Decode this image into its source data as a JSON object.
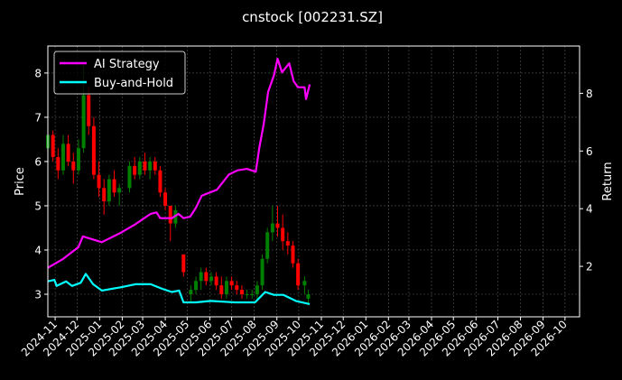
{
  "chart_data": {
    "type": "candlestick+line",
    "title": "cnstock [002231.SZ]",
    "ylabel_left": "Price",
    "ylabel_right": "Return",
    "ylim_left": [
      2.49,
      8.61
    ],
    "ylim_right": [
      0.25,
      9.64
    ],
    "xlim": [
      "2024-10-22",
      "2026-10-21"
    ],
    "left_ticks": [
      "3",
      "4",
      "5",
      "6",
      "7",
      "8"
    ],
    "right_ticks": [
      "2",
      "4",
      "6",
      "8"
    ],
    "x_ticks": [
      "2024-11",
      "2024-12",
      "2025-01",
      "2025-02",
      "2025-03",
      "2025-04",
      "2025-05",
      "2025-06",
      "2025-07",
      "2025-08",
      "2025-09",
      "2025-10",
      "2025-11",
      "2025-12",
      "2026-01",
      "2026-02",
      "2026-03",
      "2026-04",
      "2026-05",
      "2026-06",
      "2026-07",
      "2026-08",
      "2026-09",
      "2026-10"
    ],
    "grid": true,
    "legend_position": "top-left",
    "colors": {
      "up": "#008000",
      "down": "#ff0000",
      "ai": "#ff00ff",
      "bh": "#00ffff",
      "background": "#000000",
      "grid": "#555555"
    },
    "candles_columns": [
      "date",
      "open",
      "high",
      "low",
      "close"
    ],
    "candles": [
      [
        "2024-10-22",
        6.3,
        6.8,
        6.1,
        6.6
      ],
      [
        "2024-10-29",
        6.6,
        6.7,
        6.0,
        6.1
      ],
      [
        "2024-11-05",
        6.1,
        6.3,
        5.6,
        5.8
      ],
      [
        "2024-11-12",
        5.8,
        6.6,
        5.7,
        6.4
      ],
      [
        "2024-11-19",
        6.4,
        6.6,
        5.9,
        6.0
      ],
      [
        "2024-11-26",
        6.0,
        6.2,
        5.5,
        5.8
      ],
      [
        "2024-12-03",
        5.8,
        6.5,
        5.7,
        6.3
      ],
      [
        "2024-12-10",
        6.3,
        8.2,
        6.2,
        7.5
      ],
      [
        "2024-12-17",
        7.5,
        7.7,
        6.6,
        6.8
      ],
      [
        "2024-12-24",
        6.8,
        7.0,
        5.6,
        5.7
      ],
      [
        "2024-12-31",
        5.7,
        6.0,
        5.2,
        5.4
      ],
      [
        "2025-01-07",
        5.4,
        5.6,
        4.8,
        5.1
      ],
      [
        "2025-01-14",
        5.1,
        5.7,
        5.0,
        5.6
      ],
      [
        "2025-01-21",
        5.6,
        5.8,
        5.2,
        5.3
      ],
      [
        "2025-01-28",
        5.3,
        5.5,
        5.0,
        5.4
      ],
      [
        "2025-02-11",
        5.4,
        6.0,
        5.3,
        5.9
      ],
      [
        "2025-02-18",
        5.9,
        6.1,
        5.6,
        5.7
      ],
      [
        "2025-02-25",
        5.7,
        6.1,
        5.6,
        6.0
      ],
      [
        "2025-03-04",
        6.0,
        6.2,
        5.7,
        5.8
      ],
      [
        "2025-03-11",
        5.8,
        6.1,
        5.6,
        6.0
      ],
      [
        "2025-03-18",
        6.0,
        6.1,
        5.7,
        5.8
      ],
      [
        "2025-03-25",
        5.8,
        5.9,
        5.2,
        5.3
      ],
      [
        "2025-04-01",
        5.3,
        5.4,
        4.9,
        5.0
      ],
      [
        "2025-04-08",
        5.0,
        5.0,
        4.2,
        4.6
      ],
      [
        "2025-04-15",
        4.6,
        5.0,
        4.5,
        4.9
      ],
      [
        "2025-04-26",
        3.9,
        3.9,
        3.4,
        3.5
      ],
      [
        "2025-05-06",
        3.0,
        3.2,
        2.8,
        3.1
      ],
      [
        "2025-05-13",
        3.1,
        3.4,
        3.0,
        3.3
      ],
      [
        "2025-05-20",
        3.3,
        3.6,
        3.1,
        3.5
      ],
      [
        "2025-05-27",
        3.5,
        3.6,
        3.2,
        3.3
      ],
      [
        "2025-06-03",
        3.3,
        3.5,
        3.2,
        3.4
      ],
      [
        "2025-06-10",
        3.4,
        3.5,
        3.1,
        3.2
      ],
      [
        "2025-06-17",
        3.2,
        3.4,
        2.9,
        3.0
      ],
      [
        "2025-06-24",
        3.0,
        3.4,
        2.9,
        3.3
      ],
      [
        "2025-07-01",
        3.3,
        3.4,
        3.1,
        3.2
      ],
      [
        "2025-07-08",
        3.2,
        3.3,
        3.0,
        3.1
      ],
      [
        "2025-07-15",
        3.1,
        3.2,
        2.9,
        3.0
      ],
      [
        "2025-07-22",
        3.0,
        3.1,
        2.9,
        3.0
      ],
      [
        "2025-07-29",
        3.0,
        3.1,
        2.9,
        3.0
      ],
      [
        "2025-08-05",
        3.0,
        3.3,
        2.9,
        3.2
      ],
      [
        "2025-08-12",
        3.2,
        3.9,
        3.1,
        3.8
      ],
      [
        "2025-08-19",
        3.8,
        4.5,
        3.7,
        4.4
      ],
      [
        "2025-08-26",
        4.4,
        5.0,
        4.2,
        4.6
      ],
      [
        "2025-09-02",
        4.6,
        5.0,
        4.3,
        4.5
      ],
      [
        "2025-09-09",
        4.5,
        4.8,
        4.0,
        4.2
      ],
      [
        "2025-09-16",
        4.2,
        4.4,
        3.9,
        4.1
      ],
      [
        "2025-09-23",
        4.1,
        4.2,
        3.6,
        3.7
      ],
      [
        "2025-09-30",
        3.7,
        3.8,
        3.1,
        3.2
      ],
      [
        "2025-10-09",
        3.2,
        3.4,
        3.0,
        3.3
      ],
      [
        "2025-10-14",
        2.9,
        3.1,
        2.8,
        3.0
      ]
    ],
    "series": [
      {
        "name": "AI Strategy",
        "axis": "right",
        "x": [
          "2024-10-22",
          "2024-11-12",
          "2024-12-03",
          "2024-12-09",
          "2025-01-04",
          "2025-01-29",
          "2025-02-19",
          "2025-03-12",
          "2025-03-20",
          "2025-03-25",
          "2025-04-10",
          "2025-04-19",
          "2025-04-26",
          "2025-05-05",
          "2025-05-13",
          "2025-05-21",
          "2025-06-11",
          "2025-06-27",
          "2025-07-09",
          "2025-07-22",
          "2025-08-03",
          "2025-08-08",
          "2025-08-14",
          "2025-08-20",
          "2025-08-28",
          "2025-09-02",
          "2025-09-08",
          "2025-09-18",
          "2025-09-24",
          "2025-09-30",
          "2025-10-09",
          "2025-10-11",
          "2025-10-16"
        ],
        "values": [
          1.95,
          2.26,
          2.67,
          3.04,
          2.84,
          3.15,
          3.46,
          3.82,
          3.87,
          3.67,
          3.67,
          3.82,
          3.67,
          3.72,
          4.03,
          4.45,
          4.66,
          5.18,
          5.33,
          5.38,
          5.28,
          6.12,
          6.95,
          8.05,
          8.63,
          9.2,
          8.73,
          9.04,
          8.42,
          8.21,
          8.21,
          7.8,
          8.31
        ]
      },
      {
        "name": "Buy-and-Hold",
        "axis": "right",
        "x": [
          "2024-10-22",
          "2024-10-31",
          "2024-11-03",
          "2024-11-16",
          "2024-11-24",
          "2024-12-06",
          "2024-12-13",
          "2024-12-23",
          "2025-01-04",
          "2025-01-29",
          "2025-02-19",
          "2025-03-12",
          "2025-03-28",
          "2025-04-10",
          "2025-04-20",
          "2025-04-26",
          "2025-05-13",
          "2025-06-02",
          "2025-07-06",
          "2025-08-02",
          "2025-08-16",
          "2025-08-28",
          "2025-09-10",
          "2025-09-27",
          "2025-10-16"
        ],
        "values": [
          1.48,
          1.53,
          1.32,
          1.48,
          1.32,
          1.43,
          1.74,
          1.38,
          1.16,
          1.27,
          1.38,
          1.38,
          1.22,
          1.11,
          1.16,
          0.75,
          0.75,
          0.8,
          0.75,
          0.75,
          1.11,
          1.01,
          1.01,
          0.8,
          0.69
        ]
      }
    ]
  }
}
